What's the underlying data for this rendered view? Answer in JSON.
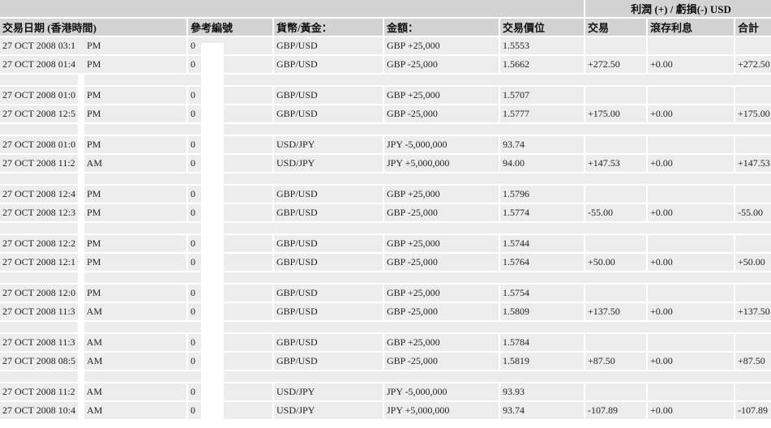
{
  "header": {
    "pl_group": "利潤 (+) / 虧損(-) USD",
    "columns": [
      "交易日期 (香港時間)",
      "參考編號",
      "貨幣/黃金：",
      "金額：",
      "交易價位",
      "交易",
      "滾存利息",
      "合計"
    ]
  },
  "groups": [
    {
      "rows": [
        {
          "date": "27 OCT 2008 03:1",
          "ampm": "PM",
          "ref": "0",
          "pair": "GBP/USD",
          "amount": "GBP +25,000",
          "price": "1.5553",
          "trade": "",
          "rollover": "",
          "total": ""
        },
        {
          "date": "27 OCT 2008 01:4",
          "ampm": "PM",
          "ref": "0",
          "pair": "GBP/USD",
          "amount": "GBP -25,000",
          "price": "1.5662",
          "trade": "+272.50",
          "rollover": "+0.00",
          "total": "+272.50"
        }
      ]
    },
    {
      "rows": [
        {
          "date": "27 OCT 2008 01:0",
          "ampm": "PM",
          "ref": "0",
          "pair": "GBP/USD",
          "amount": "GBP +25,000",
          "price": "1.5707",
          "trade": "",
          "rollover": "",
          "total": ""
        },
        {
          "date": "27 OCT 2008 12:5",
          "ampm": "PM",
          "ref": "0",
          "pair": "GBP/USD",
          "amount": "GBP -25,000",
          "price": "1.5777",
          "trade": "+175.00",
          "rollover": "+0.00",
          "total": "+175.00"
        }
      ]
    },
    {
      "rows": [
        {
          "date": "27 OCT 2008 01:0",
          "ampm": "PM",
          "ref": "0",
          "pair": "USD/JPY",
          "amount": "JPY -5,000,000",
          "price": "93.74",
          "trade": "",
          "rollover": "",
          "total": ""
        },
        {
          "date": "27 OCT 2008 11:2",
          "ampm": "AM",
          "ref": "0",
          "pair": "USD/JPY",
          "amount": "JPY +5,000,000",
          "price": "94.00",
          "trade": "+147.53",
          "rollover": "+0.00",
          "total": "+147.53"
        }
      ]
    },
    {
      "rows": [
        {
          "date": "27 OCT 2008 12:4",
          "ampm": "PM",
          "ref": "0",
          "pair": "GBP/USD",
          "amount": "GBP +25,000",
          "price": "1.5796",
          "trade": "",
          "rollover": "",
          "total": ""
        },
        {
          "date": "27 OCT 2008 12:3",
          "ampm": "PM",
          "ref": "0",
          "pair": "GBP/USD",
          "amount": "GBP -25,000",
          "price": "1.5774",
          "trade": "-55.00",
          "rollover": "+0.00",
          "total": "-55.00"
        }
      ]
    },
    {
      "rows": [
        {
          "date": "27 OCT 2008 12:2",
          "ampm": "PM",
          "ref": "0",
          "pair": "GBP/USD",
          "amount": "GBP +25,000",
          "price": "1.5744",
          "trade": "",
          "rollover": "",
          "total": ""
        },
        {
          "date": "27 OCT 2008 12:1",
          "ampm": "PM",
          "ref": "0",
          "pair": "GBP/USD",
          "amount": "GBP -25,000",
          "price": "1.5764",
          "trade": "+50.00",
          "rollover": "+0.00",
          "total": "+50.00"
        }
      ]
    },
    {
      "rows": [
        {
          "date": "27 OCT 2008 12:0",
          "ampm": "PM",
          "ref": "0",
          "pair": "GBP/USD",
          "amount": "GBP +25,000",
          "price": "1.5754",
          "trade": "",
          "rollover": "",
          "total": ""
        },
        {
          "date": "27 OCT 2008 11:3",
          "ampm": "AM",
          "ref": "0",
          "pair": "GBP/USD",
          "amount": "GBP -25,000",
          "price": "1.5809",
          "trade": "+137.50",
          "rollover": "+0.00",
          "total": "+137.50"
        }
      ]
    },
    {
      "rows": [
        {
          "date": "27 OCT 2008 11:3",
          "ampm": "AM",
          "ref": "0",
          "pair": "GBP/USD",
          "amount": "GBP +25,000",
          "price": "1.5784",
          "trade": "",
          "rollover": "",
          "total": ""
        },
        {
          "date": "27 OCT 2008 08:5",
          "ampm": "AM",
          "ref": "0",
          "pair": "GBP/USD",
          "amount": "GBP -25,000",
          "price": "1.5819",
          "trade": "+87.50",
          "rollover": "+0.00",
          "total": "+87.50"
        }
      ]
    },
    {
      "rows": [
        {
          "date": "27 OCT 2008 11:2",
          "ampm": "AM",
          "ref": "0",
          "pair": "USD/JPY",
          "amount": "JPY -5,000,000",
          "price": "93.93",
          "trade": "",
          "rollover": "",
          "total": ""
        },
        {
          "date": "27 OCT 2008 10:4",
          "ampm": "AM",
          "ref": "0",
          "pair": "USD/JPY",
          "amount": "JPY +5,000,000",
          "price": "93.74",
          "trade": "-107.89",
          "rollover": "+0.00",
          "total": "-107.89"
        }
      ]
    }
  ]
}
